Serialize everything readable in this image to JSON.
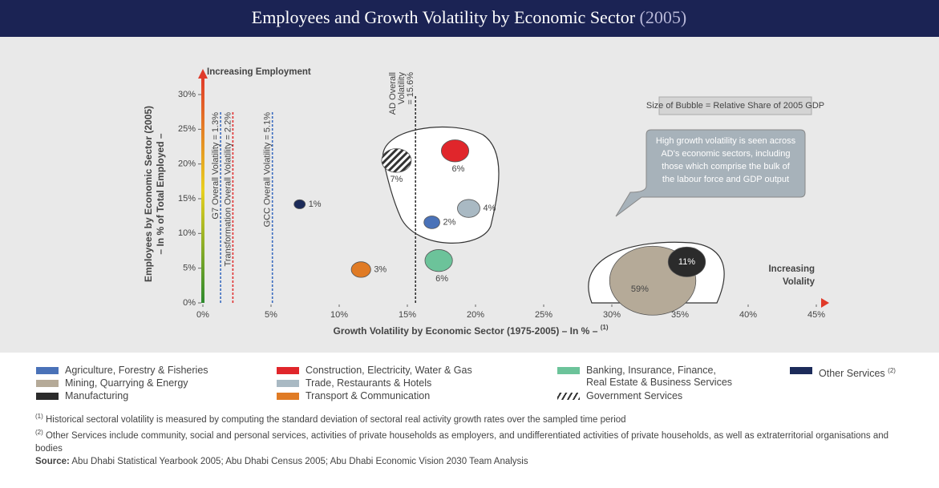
{
  "chart_data": {
    "type": "bubble",
    "title": "Employees and Growth Volatility by Economic Sector",
    "title_year": "(2005)",
    "xlabel": "Growth Volatility by Economic Sector (1975-2005) – In % –",
    "xlabel_note": "(1)",
    "ylabel": [
      "Employees by Economic Sector (2005)",
      "– In % of Total Employed –"
    ],
    "xlim": [
      0,
      45
    ],
    "xticks": [
      {
        "value": 0,
        "label": "0%"
      },
      {
        "value": 5,
        "label": "5%"
      },
      {
        "value": 10,
        "label": "10%"
      },
      {
        "value": 15,
        "label": "15%"
      },
      {
        "value": 20,
        "label": "20%"
      },
      {
        "value": 25,
        "label": "25%"
      },
      {
        "value": 30,
        "label": "30%"
      },
      {
        "value": 35,
        "label": "35%"
      },
      {
        "value": 40,
        "label": "40%"
      },
      {
        "value": 45,
        "label": "45%"
      }
    ],
    "ylim": [
      0,
      30
    ],
    "yticks": [
      {
        "value": 0,
        "label": "0%"
      },
      {
        "value": 5,
        "label": "5%"
      },
      {
        "value": 10,
        "label": "10%"
      },
      {
        "value": 15,
        "label": "15%"
      },
      {
        "value": 20,
        "label": "20%"
      },
      {
        "value": 25,
        "label": "25%"
      },
      {
        "value": 30,
        "label": "30%"
      }
    ],
    "annotations": {
      "y_arrow": "Increasing Employment",
      "x_arrow": [
        "Increasing",
        "Volality"
      ],
      "size_note": "Size of Bubble = Relative Share of 2005 GDP",
      "callout": [
        "High growth volatility is seen across",
        "AD's economic sectors, including",
        "those which comprise the bulk of",
        "the labour force and GDP output"
      ]
    },
    "reference_lines": [
      {
        "label": [
          "G7 Overall Volatility = 1.3%"
        ],
        "value": 1.3,
        "color": "#3a6cc0"
      },
      {
        "label": [
          "Transformation Overall Volatility = 2.2%"
        ],
        "value": 2.2,
        "color": "#e03030"
      },
      {
        "label": [
          "GCC Overall Volatility = 5.1%"
        ],
        "value": 5.1,
        "color": "#3a6cc0"
      },
      {
        "label": [
          "AD Overall",
          "Volatility",
          "= 15.6%"
        ],
        "value": 15.6,
        "color": "#333333"
      }
    ],
    "series": [
      {
        "name": "Agriculture, Forestry & Fisheries",
        "color": "#4a72b8",
        "x": [
          16.8
        ],
        "values": [
          11.6
        ],
        "sizes": [
          2
        ],
        "size_labels": [
          "2%"
        ]
      },
      {
        "name": "Construction, Electricity, Water & Gas",
        "color": "#e0262b",
        "x": [
          18.5
        ],
        "values": [
          21.9
        ],
        "sizes": [
          6
        ],
        "size_labels": [
          "6%"
        ]
      },
      {
        "name": "Banking, Insurance, Finance,\nReal Estate & Business Services",
        "color": "#6cc39a",
        "x": [
          17.3
        ],
        "values": [
          6.1
        ],
        "sizes": [
          6
        ],
        "size_labels": [
          "6%"
        ]
      },
      {
        "name": "Other Services",
        "note": "(2)",
        "color": "#1c2b5a",
        "x": [
          7.1
        ],
        "values": [
          14.2
        ],
        "sizes": [
          1
        ],
        "size_labels": [
          "1%"
        ]
      },
      {
        "name": "Mining, Quarrying & Energy",
        "color": "#b5aa98",
        "x": [
          33
        ],
        "values": [
          3.2
        ],
        "sizes": [
          59
        ],
        "size_labels": [
          "59%"
        ]
      },
      {
        "name": "Trade, Restaurants & Hotels",
        "color": "#a9b9c3",
        "x": [
          19.5
        ],
        "values": [
          13.6
        ],
        "sizes": [
          4
        ],
        "size_labels": [
          "4%"
        ]
      },
      {
        "name": "Manufacturing",
        "color": "#2b2b2b",
        "x": [
          35.5
        ],
        "values": [
          5.9
        ],
        "sizes": [
          11
        ],
        "size_labels": [
          "11%"
        ]
      },
      {
        "name": "Transport & Communication",
        "color": "#e07b25",
        "x": [
          11.6
        ],
        "values": [
          4.8
        ],
        "sizes": [
          3
        ],
        "size_labels": [
          "3%"
        ]
      },
      {
        "name": "Government Services",
        "color": "#333333",
        "pattern": "hatch",
        "x": [
          14.2
        ],
        "values": [
          20.5
        ],
        "sizes": [
          7
        ],
        "size_labels": [
          "7%"
        ]
      }
    ]
  },
  "footnotes": [
    {
      "mark": "(1)",
      "text": "Historical sectoral volatility is measured by computing the standard deviation of sectoral real activity growth rates over the sampled time period"
    },
    {
      "mark": "(2)",
      "text": "Other Services include community, social and personal services, activities of private households as employers, and undifferentiated activities of private households, as well as extraterritorial organisations and bodies"
    }
  ],
  "source": {
    "label": "Source:",
    "text": "Abu Dhabi Statistical Yearbook 2005; Abu Dhabi Census 2005; Abu Dhabi Economic Vision 2030 Team Analysis"
  }
}
